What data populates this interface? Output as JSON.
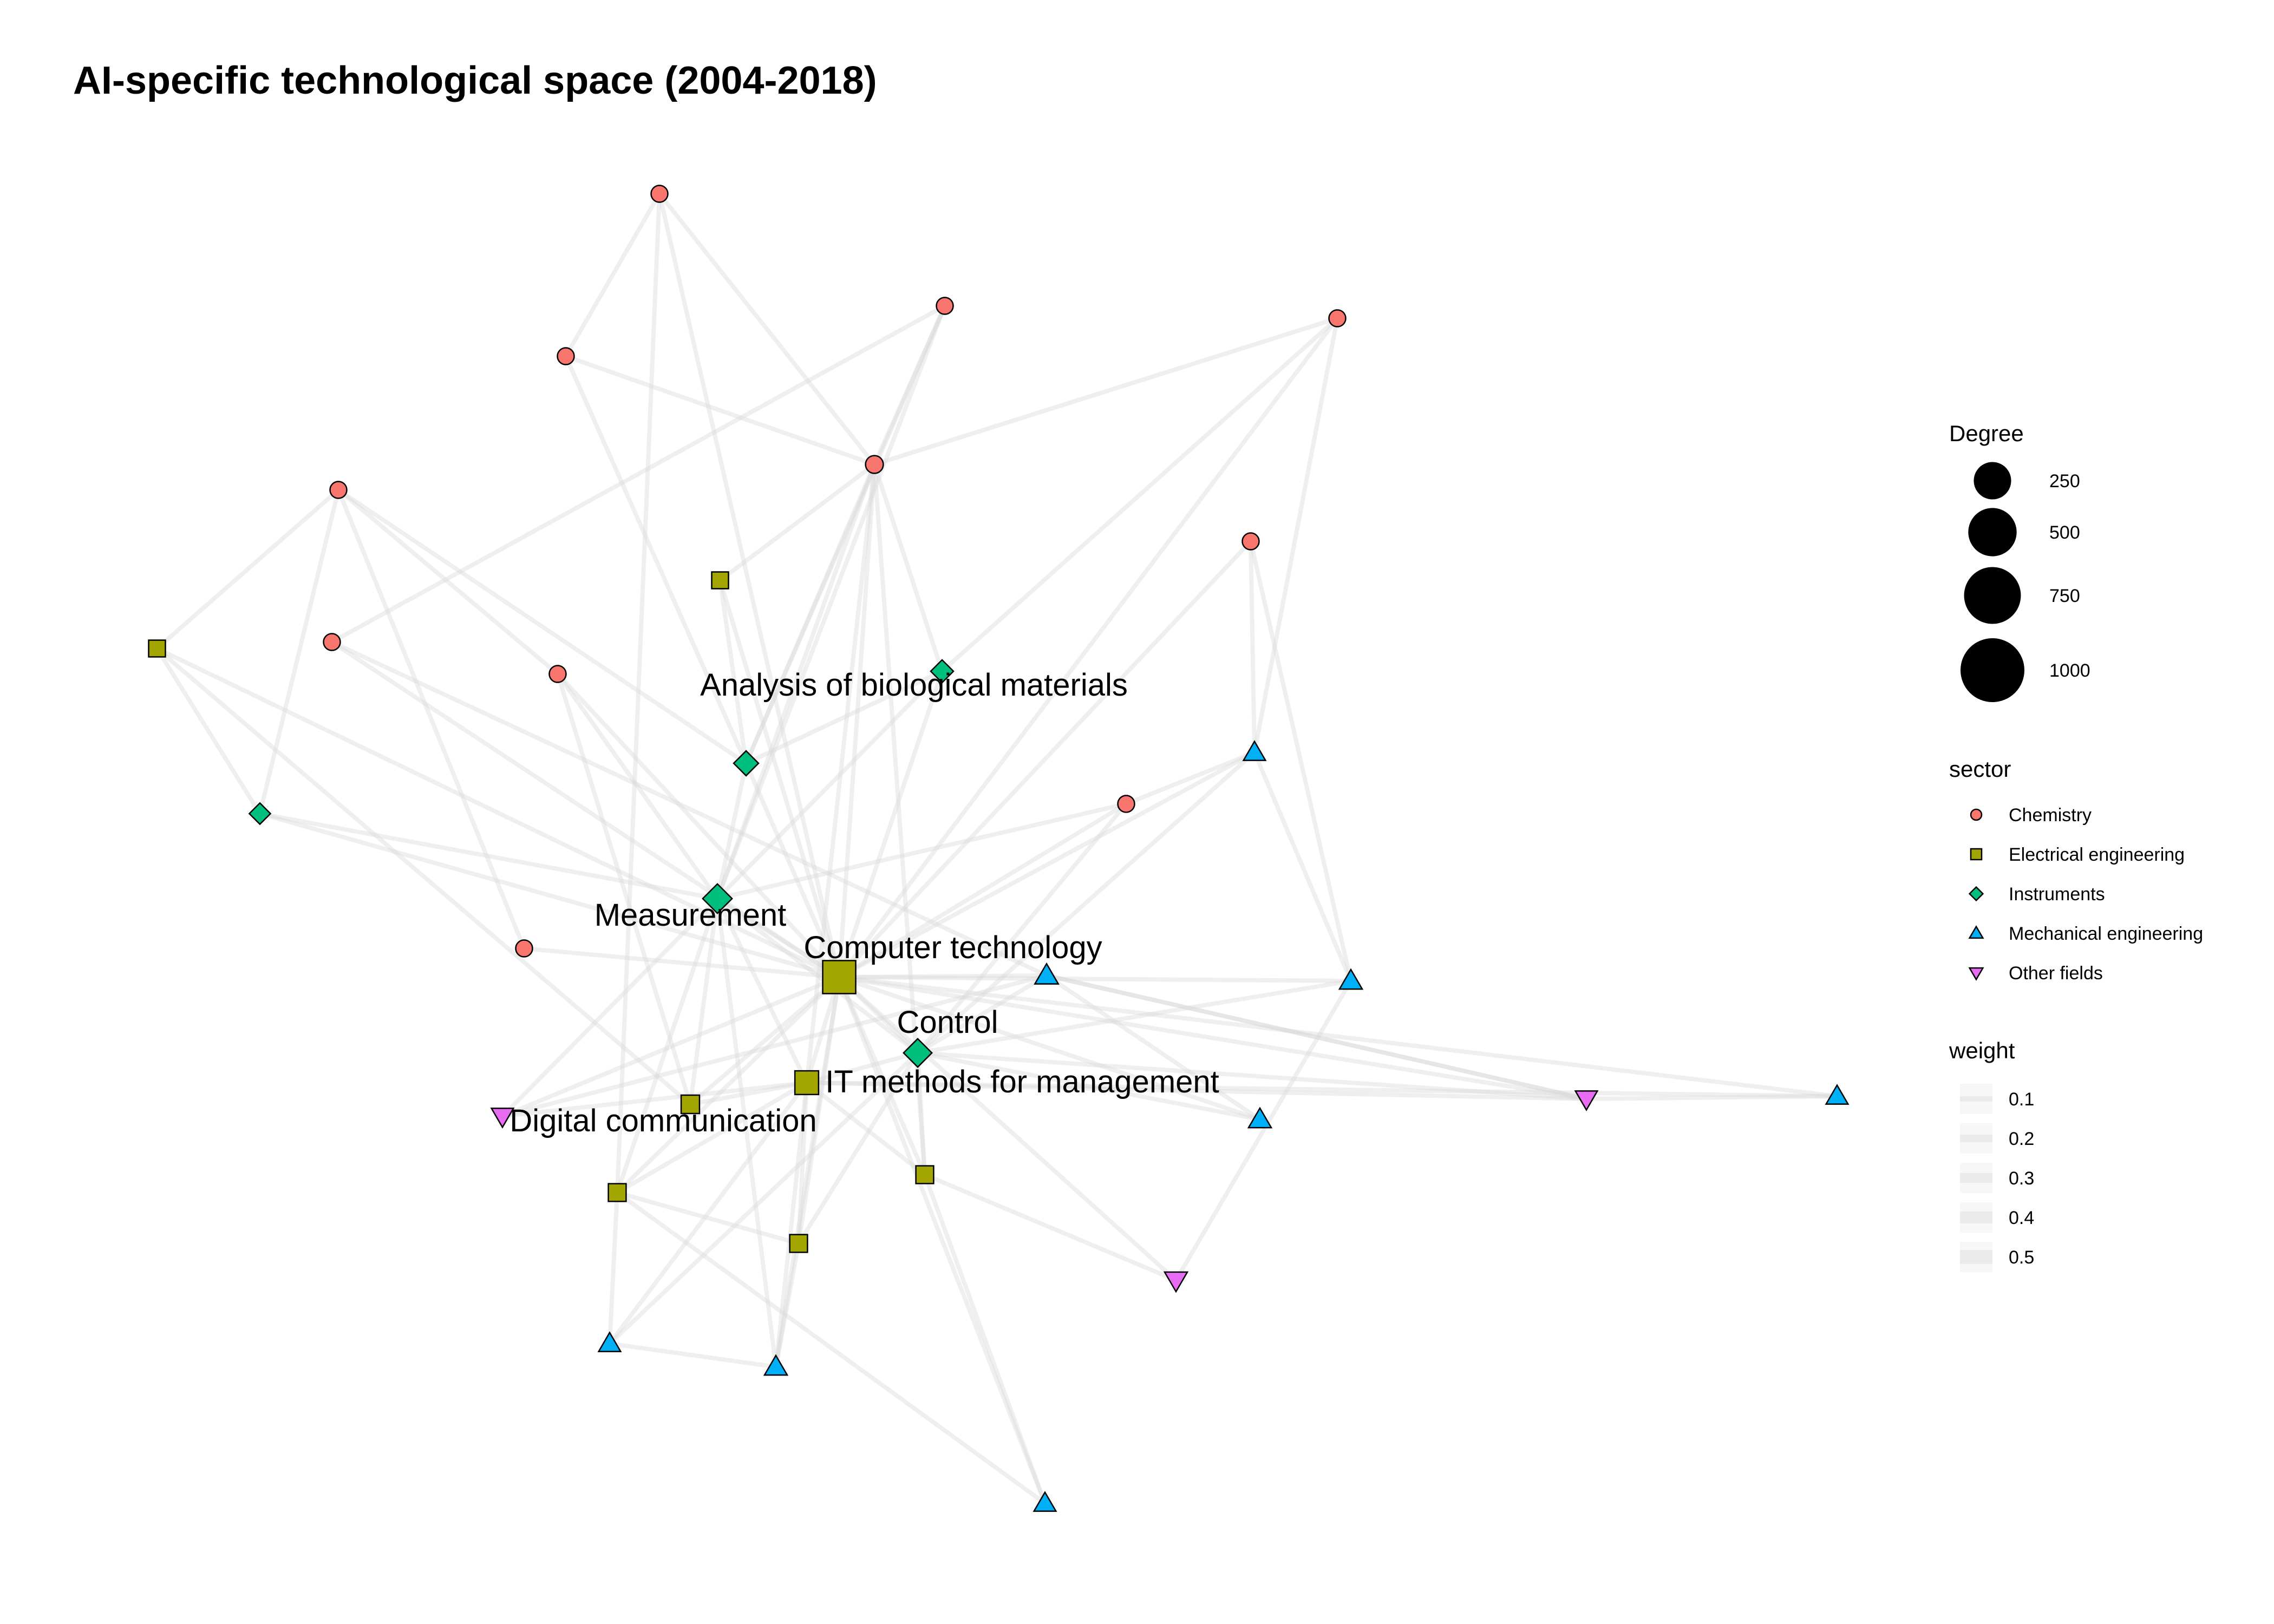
{
  "title": "AI-specific technological space (2004-2018)",
  "colors": {
    "Chemistry": "#F8766D",
    "Electrical engineering": "#A3A500",
    "Instruments": "#00BF7D",
    "Mechanical engineering": "#00B0F6",
    "Other fields": "#E76BF3",
    "edge": "#d9d9d9",
    "legend_edge": "#ebebeb"
  },
  "legend": {
    "degree_title": "Degree",
    "degree_items": [
      {
        "label": "250",
        "value": 250
      },
      {
        "label": "500",
        "value": 500
      },
      {
        "label": "750",
        "value": 750
      },
      {
        "label": "1000",
        "value": 1000
      }
    ],
    "sector_title": "sector",
    "sector_items": [
      {
        "label": "Chemistry",
        "shape": "circle-icon"
      },
      {
        "label": "Electrical engineering",
        "shape": "square-icon"
      },
      {
        "label": "Instruments",
        "shape": "diamond-icon"
      },
      {
        "label": "Mechanical engineering",
        "shape": "triangle-up-icon"
      },
      {
        "label": "Other fields",
        "shape": "triangle-down-icon"
      }
    ],
    "weight_title": "weight",
    "weight_items": [
      {
        "label": "0.1",
        "value": 0.1
      },
      {
        "label": "0.2",
        "value": 0.2
      },
      {
        "label": "0.3",
        "value": 0.3
      },
      {
        "label": "0.4",
        "value": 0.4
      },
      {
        "label": "0.5",
        "value": 0.5
      }
    ]
  },
  "nodes": [
    {
      "id": "CT",
      "label": "Computer technology",
      "sector": "Electrical engineering",
      "degree": 1000
    },
    {
      "id": "ITM",
      "label": "IT methods for management",
      "sector": "Electrical engineering",
      "degree": 420
    },
    {
      "id": "DC",
      "label": "Digital communication",
      "sector": "Electrical engineering",
      "degree": 200
    },
    {
      "id": "MEAS",
      "label": "Measurement",
      "sector": "Instruments",
      "degree": 420
    },
    {
      "id": "CTRL",
      "label": "Control",
      "sector": "Instruments",
      "degree": 380
    },
    {
      "id": "ABM",
      "label": "Analysis of biological materials",
      "sector": "Instruments",
      "degree": 260
    },
    {
      "id": "I2",
      "label": "",
      "sector": "Instruments",
      "degree": 200
    },
    {
      "id": "I3",
      "label": "",
      "sector": "Instruments",
      "degree": 160
    },
    {
      "id": "E1",
      "label": "",
      "sector": "Electrical engineering",
      "degree": 150
    },
    {
      "id": "E2",
      "label": "",
      "sector": "Electrical engineering",
      "degree": 150
    },
    {
      "id": "E3",
      "label": "",
      "sector": "Electrical engineering",
      "degree": 180
    },
    {
      "id": "E4",
      "label": "",
      "sector": "Electrical engineering",
      "degree": 180
    },
    {
      "id": "E5",
      "label": "",
      "sector": "Electrical engineering",
      "degree": 180
    },
    {
      "id": "C1",
      "label": "",
      "sector": "Chemistry",
      "degree": 150
    },
    {
      "id": "C2",
      "label": "",
      "sector": "Chemistry",
      "degree": 150
    },
    {
      "id": "C3",
      "label": "",
      "sector": "Chemistry",
      "degree": 150
    },
    {
      "id": "C4",
      "label": "",
      "sector": "Chemistry",
      "degree": 150
    },
    {
      "id": "C5",
      "label": "",
      "sector": "Chemistry",
      "degree": 180
    },
    {
      "id": "C6",
      "label": "",
      "sector": "Chemistry",
      "degree": 150
    },
    {
      "id": "C7",
      "label": "",
      "sector": "Chemistry",
      "degree": 150
    },
    {
      "id": "C8",
      "label": "",
      "sector": "Chemistry",
      "degree": 150
    },
    {
      "id": "C9",
      "label": "",
      "sector": "Chemistry",
      "degree": 150
    },
    {
      "id": "C10",
      "label": "",
      "sector": "Chemistry",
      "degree": 150
    },
    {
      "id": "C11",
      "label": "",
      "sector": "Chemistry",
      "degree": 150
    },
    {
      "id": "M1",
      "label": "",
      "sector": "Mechanical engineering",
      "degree": 180
    },
    {
      "id": "M2",
      "label": "",
      "sector": "Mechanical engineering",
      "degree": 220
    },
    {
      "id": "M3",
      "label": "",
      "sector": "Mechanical engineering",
      "degree": 200
    },
    {
      "id": "M4",
      "label": "",
      "sector": "Mechanical engineering",
      "degree": 200
    },
    {
      "id": "M5",
      "label": "",
      "sector": "Mechanical engineering",
      "degree": 180
    },
    {
      "id": "M6",
      "label": "",
      "sector": "Mechanical engineering",
      "degree": 180
    },
    {
      "id": "M7",
      "label": "",
      "sector": "Mechanical engineering",
      "degree": 200
    },
    {
      "id": "M8",
      "label": "",
      "sector": "Mechanical engineering",
      "degree": 180
    },
    {
      "id": "O1",
      "label": "",
      "sector": "Other fields",
      "degree": 180
    },
    {
      "id": "O2",
      "label": "",
      "sector": "Other fields",
      "degree": 180
    },
    {
      "id": "O3",
      "label": "",
      "sector": "Other fields",
      "degree": 200
    }
  ],
  "edges": [
    [
      "CT",
      "ITM"
    ],
    [
      "CT",
      "MEAS"
    ],
    [
      "CT",
      "CTRL"
    ],
    [
      "CT",
      "DC"
    ],
    [
      "CT",
      "ABM"
    ],
    [
      "CT",
      "I2"
    ],
    [
      "CT",
      "C1"
    ],
    [
      "CT",
      "C5"
    ],
    [
      "CT",
      "C8"
    ],
    [
      "CT",
      "C9"
    ],
    [
      "CT",
      "C10"
    ],
    [
      "CT",
      "C6"
    ],
    [
      "CT",
      "C7"
    ],
    [
      "CT",
      "E1"
    ],
    [
      "CT",
      "E2"
    ],
    [
      "CT",
      "E3"
    ],
    [
      "CT",
      "E4"
    ],
    [
      "CT",
      "E5"
    ],
    [
      "CT",
      "M1"
    ],
    [
      "CT",
      "M2"
    ],
    [
      "CT",
      "M3"
    ],
    [
      "CT",
      "M4"
    ],
    [
      "CT",
      "M5"
    ],
    [
      "CT",
      "M7"
    ],
    [
      "CT",
      "M8"
    ],
    [
      "CT",
      "O1"
    ],
    [
      "CT",
      "O2"
    ],
    [
      "CT",
      "O3"
    ],
    [
      "CT",
      "I3"
    ],
    [
      "CT",
      "C11"
    ],
    [
      "ITM",
      "MEAS"
    ],
    [
      "ITM",
      "DC"
    ],
    [
      "ITM",
      "CTRL"
    ],
    [
      "ITM",
      "O1"
    ],
    [
      "ITM",
      "O2"
    ],
    [
      "ITM",
      "E3"
    ],
    [
      "ITM",
      "E4"
    ],
    [
      "ITM",
      "E5"
    ],
    [
      "ITM",
      "M6"
    ],
    [
      "ITM",
      "M7"
    ],
    [
      "ITM",
      "M5"
    ],
    [
      "ITM",
      "C5"
    ],
    [
      "MEAS",
      "CTRL"
    ],
    [
      "MEAS",
      "ABM"
    ],
    [
      "MEAS",
      "I2"
    ],
    [
      "MEAS",
      "I3"
    ],
    [
      "MEAS",
      "C5"
    ],
    [
      "MEAS",
      "C11"
    ],
    [
      "MEAS",
      "E3"
    ],
    [
      "MEAS",
      "DC"
    ],
    [
      "MEAS",
      "O2"
    ],
    [
      "MEAS",
      "M7"
    ],
    [
      "MEAS",
      "C4"
    ],
    [
      "MEAS",
      "C9"
    ],
    [
      "CTRL",
      "M1"
    ],
    [
      "CTRL",
      "M2"
    ],
    [
      "CTRL",
      "M3"
    ],
    [
      "CTRL",
      "M4"
    ],
    [
      "CTRL",
      "M6"
    ],
    [
      "CTRL",
      "E4"
    ],
    [
      "CTRL",
      "E5"
    ],
    [
      "CTRL",
      "C11"
    ],
    [
      "CTRL",
      "O1"
    ],
    [
      "ABM",
      "C5"
    ],
    [
      "ABM",
      "C2"
    ],
    [
      "ABM",
      "C3"
    ],
    [
      "ABM",
      "C4"
    ],
    [
      "ABM",
      "E2"
    ],
    [
      "ABM",
      "I2"
    ],
    [
      "I2",
      "C5"
    ],
    [
      "I2",
      "C6"
    ],
    [
      "C1",
      "C5"
    ],
    [
      "C1",
      "C2"
    ],
    [
      "C1",
      "E3"
    ],
    [
      "C2",
      "C5"
    ],
    [
      "C3",
      "C9"
    ],
    [
      "C3",
      "C10"
    ],
    [
      "C3",
      "E1"
    ],
    [
      "C3",
      "I3"
    ],
    [
      "C4",
      "C8"
    ],
    [
      "C4",
      "C5"
    ],
    [
      "C5",
      "C6"
    ],
    [
      "C5",
      "E4"
    ],
    [
      "C6",
      "M1"
    ],
    [
      "C7",
      "M1"
    ],
    [
      "C7",
      "M3"
    ],
    [
      "C8",
      "M2"
    ],
    [
      "C11",
      "M1"
    ],
    [
      "E1",
      "I3"
    ],
    [
      "E1",
      "DC"
    ],
    [
      "E3",
      "E5"
    ],
    [
      "E3",
      "M6"
    ],
    [
      "E5",
      "M7"
    ],
    [
      "E4",
      "O3"
    ],
    [
      "E3",
      "M8"
    ],
    [
      "M2",
      "M4"
    ],
    [
      "M2",
      "O1"
    ],
    [
      "M1",
      "M3"
    ],
    [
      "M2",
      "O2"
    ],
    [
      "M6",
      "M7"
    ],
    [
      "O1",
      "M5"
    ],
    [
      "O1",
      "M2"
    ],
    [
      "O3",
      "M3"
    ],
    [
      "E4",
      "M8"
    ],
    [
      "C9",
      "DC"
    ],
    [
      "E2",
      "C5"
    ]
  ]
}
